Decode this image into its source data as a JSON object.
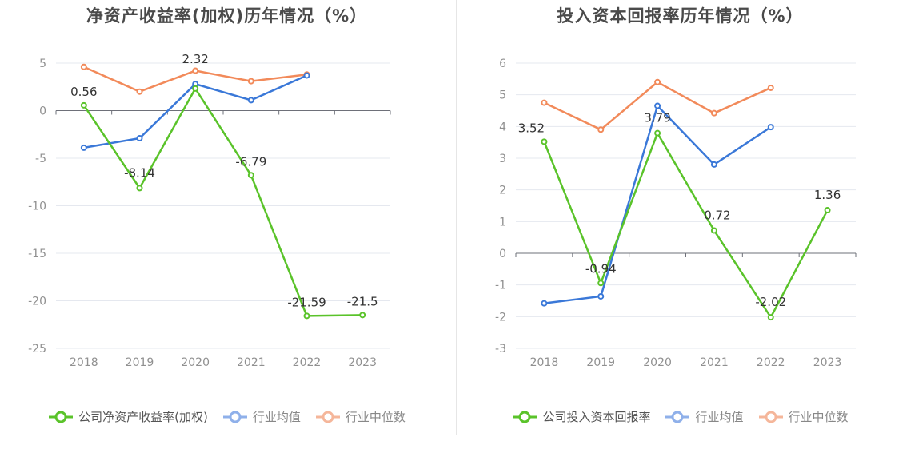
{
  "colors": {
    "company": "#5ac32a",
    "industry_avg": "#3a78d8",
    "industry_median": "#f28a5a",
    "legend_avg": "#8fb0ea",
    "legend_median": "#f5b69a"
  },
  "charts": {
    "left": {
      "title": "净资产收益率(加权)历年情况（%）",
      "legend": {
        "company": "公司净资产收益率(加权)",
        "avg": "行业均值",
        "median": "行业中位数"
      }
    },
    "right": {
      "title": "投入资本回报率历年情况（%）",
      "legend": {
        "company": "公司投入资本回报率",
        "avg": "行业均值",
        "median": "行业中位数"
      }
    }
  },
  "chart_data": [
    {
      "type": "line",
      "title": "净资产收益率(加权)历年情况（%）",
      "categories": [
        "2018",
        "2019",
        "2020",
        "2021",
        "2022",
        "2023"
      ],
      "ylim": [
        -25,
        5
      ],
      "yticks": [
        5,
        0,
        -5,
        -10,
        -15,
        -20,
        -25
      ],
      "grid": true,
      "legend_position": "bottom",
      "series": [
        {
          "name": "公司净资产收益率(加权)",
          "key": "company",
          "values": [
            0.56,
            -8.14,
            2.32,
            -6.79,
            -21.59,
            -21.5
          ],
          "labels": [
            "0.56",
            "-8.14",
            "2.32",
            "-6.79",
            "-21.59",
            "-21.5"
          ]
        },
        {
          "name": "行业均值",
          "key": "avg",
          "values": [
            -3.9,
            -2.9,
            2.8,
            1.1,
            3.7,
            null
          ]
        },
        {
          "name": "行业中位数",
          "key": "median",
          "values": [
            4.6,
            2.0,
            4.2,
            3.1,
            3.8,
            null
          ]
        }
      ]
    },
    {
      "type": "line",
      "title": "投入资本回报率历年情况（%）",
      "categories": [
        "2018",
        "2019",
        "2020",
        "2021",
        "2022",
        "2023"
      ],
      "ylim": [
        -3,
        6
      ],
      "yticks": [
        6,
        5,
        4,
        3,
        2,
        1,
        0,
        -1,
        -2,
        -3
      ],
      "grid": true,
      "legend_position": "bottom",
      "series": [
        {
          "name": "公司投入资本回报率",
          "key": "company",
          "values": [
            3.52,
            -0.94,
            3.79,
            0.72,
            -2.02,
            1.36
          ],
          "labels": [
            "3.52",
            "-0.94",
            "3.79",
            "0.72",
            "-2.02",
            "1.36"
          ]
        },
        {
          "name": "行业均值",
          "key": "avg",
          "values": [
            -1.58,
            -1.36,
            4.65,
            2.8,
            3.98,
            null
          ]
        },
        {
          "name": "行业中位数",
          "key": "median",
          "values": [
            4.75,
            3.9,
            5.4,
            4.42,
            5.22,
            null
          ]
        }
      ]
    }
  ]
}
